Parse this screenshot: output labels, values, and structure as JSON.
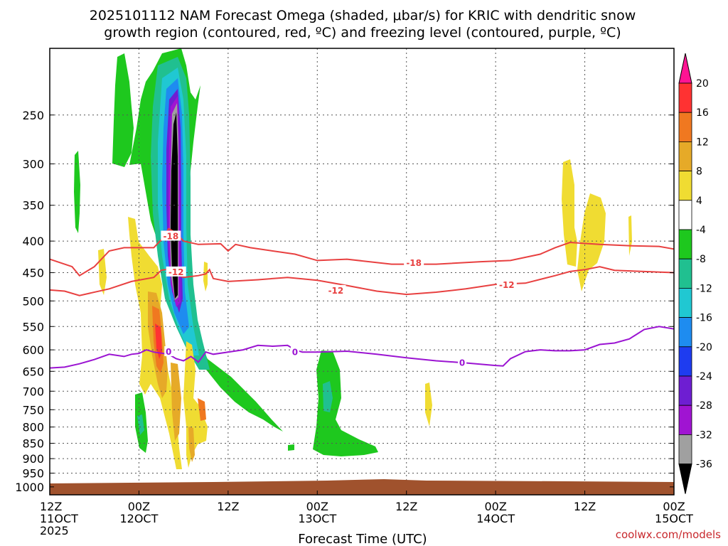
{
  "title": {
    "line1": "2025101112 NAM Forecast Omega (shaded, μbar/s) for KRIC with dendritic snow",
    "line2": "growth region (contoured, red, ºC) and freezing level (contoured, purple, ºC)"
  },
  "credit": {
    "text": "coolwx.com/models",
    "color": "#c8282d"
  },
  "chart_data": {
    "type": "time-height cross section",
    "title": "2025101112 NAM Forecast Omega (shaded, μbar/s) for KRIC with dendritic snow growth region (contoured, red, ºC) and freezing level (contoured, purple, ºC)",
    "xlabel": "Forecast Time (UTC)",
    "ylabel": "",
    "x_hours_range": [
      0,
      84
    ],
    "x_ticks": [
      {
        "hour": 0,
        "line1": "12Z",
        "line2": "11OCT",
        "line3": "2025"
      },
      {
        "hour": 12,
        "line1": "00Z",
        "line2": "12OCT",
        "line3": ""
      },
      {
        "hour": 24,
        "line1": "12Z",
        "line2": "",
        "line3": ""
      },
      {
        "hour": 36,
        "line1": "00Z",
        "line2": "13OCT",
        "line3": ""
      },
      {
        "hour": 48,
        "line1": "12Z",
        "line2": "",
        "line3": ""
      },
      {
        "hour": 60,
        "line1": "00Z",
        "line2": "14OCT",
        "line3": ""
      },
      {
        "hour": 72,
        "line1": "12Z",
        "line2": "",
        "line3": ""
      },
      {
        "hour": 84,
        "line1": "00Z",
        "line2": "15OCT",
        "line3": ""
      }
    ],
    "y_range_hPa": [
      1030,
      195
    ],
    "y_scale": "log",
    "y_ticks": [
      250,
      300,
      350,
      400,
      450,
      500,
      550,
      600,
      650,
      700,
      750,
      800,
      850,
      900,
      950,
      1000
    ],
    "grid": true,
    "colorbar": {
      "levels": [
        20,
        16,
        12,
        8,
        4,
        -4,
        -8,
        -12,
        -16,
        -20,
        -24,
        -28,
        -32,
        -36
      ],
      "colors": [
        "#ff1493",
        "#ff3232",
        "#f07820",
        "#e6aa28",
        "#f0dc32",
        "#ffffff",
        "#1ec81e",
        "#20c090",
        "#20c8d2",
        "#1e8cf0",
        "#1e3cf0",
        "#6e1ed2",
        "#a014d2",
        "#a0a0a0",
        "#000000"
      ]
    },
    "contours": [
      {
        "name": "-18",
        "color": "#e84040",
        "points": [
          [
            0,
            428
          ],
          [
            3,
            440
          ],
          [
            4,
            455
          ],
          [
            6,
            440
          ],
          [
            8,
            415
          ],
          [
            10,
            410
          ],
          [
            14,
            410
          ],
          [
            15,
            398
          ],
          [
            16,
            382
          ],
          [
            17,
            388
          ],
          [
            18,
            400
          ],
          [
            20,
            405
          ],
          [
            23,
            404
          ],
          [
            24,
            415
          ],
          [
            25,
            405
          ],
          [
            27,
            410
          ],
          [
            33,
            420
          ],
          [
            36,
            430
          ],
          [
            40,
            428
          ],
          [
            46,
            436
          ],
          [
            52,
            436
          ],
          [
            58,
            432
          ],
          [
            62,
            430
          ],
          [
            66,
            420
          ],
          [
            68,
            410
          ],
          [
            70,
            402
          ],
          [
            74,
            405
          ],
          [
            78,
            407
          ],
          [
            82,
            408
          ],
          [
            84,
            412
          ]
        ]
      },
      {
        "name": "-12",
        "color": "#e84040",
        "points": [
          [
            0,
            480
          ],
          [
            2,
            482
          ],
          [
            4,
            490
          ],
          [
            8,
            478
          ],
          [
            11,
            465
          ],
          [
            14,
            458
          ],
          [
            15,
            446
          ],
          [
            16,
            444
          ],
          [
            17,
            452
          ],
          [
            18,
            458
          ],
          [
            20,
            455
          ],
          [
            21,
            452
          ],
          [
            21.5,
            445
          ],
          [
            22,
            460
          ],
          [
            24,
            465
          ],
          [
            28,
            462
          ],
          [
            32,
            458
          ],
          [
            36,
            463
          ],
          [
            40,
            472
          ],
          [
            44,
            482
          ],
          [
            48,
            488
          ],
          [
            52,
            484
          ],
          [
            56,
            478
          ],
          [
            60,
            470
          ],
          [
            64,
            468
          ],
          [
            68,
            455
          ],
          [
            70,
            448
          ],
          [
            72,
            445
          ],
          [
            74,
            440
          ],
          [
            76,
            446
          ],
          [
            80,
            448
          ],
          [
            84,
            450
          ]
        ]
      },
      {
        "name": "0",
        "color": "#9b14d2",
        "points": [
          [
            0,
            642
          ],
          [
            2,
            640
          ],
          [
            4,
            632
          ],
          [
            6,
            622
          ],
          [
            8,
            610
          ],
          [
            10,
            615
          ],
          [
            11,
            610
          ],
          [
            12,
            608
          ],
          [
            13,
            600
          ],
          [
            14,
            605
          ],
          [
            16,
            610
          ],
          [
            17,
            620
          ],
          [
            18,
            625
          ],
          [
            19,
            615
          ],
          [
            20,
            628
          ],
          [
            21,
            605
          ],
          [
            22,
            610
          ],
          [
            24,
            605
          ],
          [
            26,
            600
          ],
          [
            28,
            590
          ],
          [
            30,
            592
          ],
          [
            32,
            590
          ],
          [
            33,
            600
          ],
          [
            34,
            605
          ],
          [
            36,
            605
          ],
          [
            40,
            603
          ],
          [
            44,
            610
          ],
          [
            48,
            618
          ],
          [
            52,
            625
          ],
          [
            56,
            630
          ],
          [
            60,
            636
          ],
          [
            61,
            637
          ],
          [
            62,
            620
          ],
          [
            64,
            604
          ],
          [
            66,
            600
          ],
          [
            68,
            602
          ],
          [
            70,
            602
          ],
          [
            72,
            600
          ],
          [
            74,
            588
          ],
          [
            76,
            585
          ],
          [
            78,
            576
          ],
          [
            79,
            566
          ],
          [
            80,
            556
          ],
          [
            82,
            550
          ],
          [
            84,
            555
          ]
        ]
      }
    ],
    "contour_labels": [
      {
        "text": "-18",
        "hour": 16.3,
        "p": 392,
        "color": "#e84040"
      },
      {
        "text": "-18",
        "hour": 49,
        "p": 433,
        "color": "#e84040"
      },
      {
        "text": "-12",
        "hour": 17,
        "p": 448,
        "color": "#e84040"
      },
      {
        "text": "-12",
        "hour": 38.5,
        "p": 480,
        "color": "#e84040"
      },
      {
        "text": "-12",
        "hour": 61.5,
        "p": 470,
        "color": "#e84040"
      },
      {
        "text": "0",
        "hour": 16,
        "p": 603,
        "color": "#9b14d2"
      },
      {
        "text": "0",
        "hour": 33,
        "p": 604,
        "color": "#9b14d2"
      },
      {
        "text": "0",
        "hour": 55.5,
        "p": 628,
        "color": "#9b14d2"
      }
    ]
  }
}
